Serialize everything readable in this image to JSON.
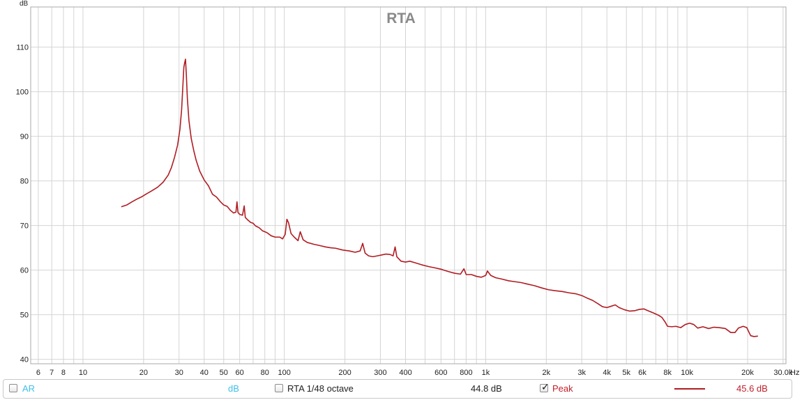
{
  "chart_data": {
    "type": "line",
    "title": "RTA",
    "ylabel": "dB",
    "xunit": "Hz",
    "xscale": "log",
    "xlim": [
      5.5,
      31000
    ],
    "ylim": [
      39,
      119
    ],
    "grid": true,
    "x_ticks": [
      {
        "v": 6,
        "label": "6"
      },
      {
        "v": 7,
        "label": "7"
      },
      {
        "v": 8,
        "label": "8"
      },
      {
        "v": 10,
        "label": "10"
      },
      {
        "v": 20,
        "label": "20"
      },
      {
        "v": 30,
        "label": "30"
      },
      {
        "v": 40,
        "label": "40"
      },
      {
        "v": 50,
        "label": "50"
      },
      {
        "v": 60,
        "label": "60"
      },
      {
        "v": 80,
        "label": "80"
      },
      {
        "v": 100,
        "label": "100"
      },
      {
        "v": 200,
        "label": "200"
      },
      {
        "v": 300,
        "label": "300"
      },
      {
        "v": 400,
        "label": "400"
      },
      {
        "v": 600,
        "label": "600"
      },
      {
        "v": 800,
        "label": "800"
      },
      {
        "v": 1000,
        "label": "1k"
      },
      {
        "v": 2000,
        "label": "2k"
      },
      {
        "v": 3000,
        "label": "3k"
      },
      {
        "v": 4000,
        "label": "4k"
      },
      {
        "v": 5000,
        "label": "5k"
      },
      {
        "v": 6000,
        "label": "6k"
      },
      {
        "v": 8000,
        "label": "8k"
      },
      {
        "v": 10000,
        "label": "10k"
      },
      {
        "v": 20000,
        "label": "20k"
      },
      {
        "v": 30000,
        "label": "30.0k"
      }
    ],
    "x_minor_grid": [
      6,
      7,
      8,
      9,
      10,
      20,
      30,
      40,
      50,
      60,
      70,
      80,
      90,
      100,
      200,
      300,
      400,
      500,
      600,
      700,
      800,
      900,
      1000,
      2000,
      3000,
      4000,
      5000,
      6000,
      7000,
      8000,
      9000,
      10000,
      20000,
      30000
    ],
    "y_ticks": [
      40,
      50,
      60,
      70,
      80,
      90,
      100,
      110
    ],
    "series": [
      {
        "name": "Peak",
        "color": "#b01c22",
        "points": [
          [
            15.5,
            74.2
          ],
          [
            16.5,
            74.6
          ],
          [
            17.5,
            75.3
          ],
          [
            18.5,
            75.9
          ],
          [
            19.5,
            76.4
          ],
          [
            20.5,
            77.0
          ],
          [
            22,
            77.8
          ],
          [
            23.5,
            78.6
          ],
          [
            25,
            79.7
          ],
          [
            26.5,
            81.3
          ],
          [
            27.5,
            83.0
          ],
          [
            28.5,
            85.3
          ],
          [
            29.5,
            88.0
          ],
          [
            30.3,
            91.5
          ],
          [
            30.9,
            96.0
          ],
          [
            31.4,
            102.0
          ],
          [
            31.7,
            105.5
          ],
          [
            32.0,
            106.5
          ],
          [
            32.3,
            107.3
          ],
          [
            32.6,
            104.0
          ],
          [
            33.0,
            98.5
          ],
          [
            33.6,
            93.5
          ],
          [
            34.5,
            89.5
          ],
          [
            35.5,
            86.8
          ],
          [
            36.5,
            84.6
          ],
          [
            38,
            82.2
          ],
          [
            40,
            80.2
          ],
          [
            42,
            78.9
          ],
          [
            44,
            77.0
          ],
          [
            46,
            76.4
          ],
          [
            48,
            75.4
          ],
          [
            50,
            74.6
          ],
          [
            52,
            74.3
          ],
          [
            54,
            73.4
          ],
          [
            56,
            72.8
          ],
          [
            57.5,
            73.0
          ],
          [
            58.2,
            75.3
          ],
          [
            58.9,
            72.9
          ],
          [
            60,
            72.5
          ],
          [
            62,
            72.3
          ],
          [
            63.2,
            74.4
          ],
          [
            64,
            71.8
          ],
          [
            66,
            71.2
          ],
          [
            68,
            70.7
          ],
          [
            70,
            70.5
          ],
          [
            72,
            69.9
          ],
          [
            75,
            69.5
          ],
          [
            78,
            68.8
          ],
          [
            82,
            68.4
          ],
          [
            86,
            67.7
          ],
          [
            90,
            67.4
          ],
          [
            95,
            67.4
          ],
          [
            98,
            67.0
          ],
          [
            101,
            68.0
          ],
          [
            103,
            71.4
          ],
          [
            105,
            70.6
          ],
          [
            108,
            68.2
          ],
          [
            112,
            67.4
          ],
          [
            117,
            66.6
          ],
          [
            120,
            68.6
          ],
          [
            124,
            66.8
          ],
          [
            130,
            66.2
          ],
          [
            140,
            65.8
          ],
          [
            150,
            65.5
          ],
          [
            160,
            65.2
          ],
          [
            170,
            65.0
          ],
          [
            180,
            64.9
          ],
          [
            195,
            64.5
          ],
          [
            210,
            64.3
          ],
          [
            225,
            64.0
          ],
          [
            238,
            64.3
          ],
          [
            245,
            66.0
          ],
          [
            252,
            63.8
          ],
          [
            262,
            63.2
          ],
          [
            275,
            63.0
          ],
          [
            290,
            63.2
          ],
          [
            305,
            63.4
          ],
          [
            320,
            63.6
          ],
          [
            335,
            63.5
          ],
          [
            347,
            63.2
          ],
          [
            355,
            65.2
          ],
          [
            362,
            63.0
          ],
          [
            380,
            62.0
          ],
          [
            400,
            61.8
          ],
          [
            420,
            62.0
          ],
          [
            450,
            61.6
          ],
          [
            480,
            61.2
          ],
          [
            520,
            60.8
          ],
          [
            560,
            60.5
          ],
          [
            600,
            60.2
          ],
          [
            650,
            59.7
          ],
          [
            700,
            59.3
          ],
          [
            750,
            59.1
          ],
          [
            780,
            60.3
          ],
          [
            800,
            59.0
          ],
          [
            850,
            59.0
          ],
          [
            900,
            58.6
          ],
          [
            950,
            58.4
          ],
          [
            1000,
            58.8
          ],
          [
            1020,
            59.8
          ],
          [
            1060,
            58.8
          ],
          [
            1120,
            58.3
          ],
          [
            1200,
            58.0
          ],
          [
            1300,
            57.6
          ],
          [
            1400,
            57.4
          ],
          [
            1500,
            57.2
          ],
          [
            1600,
            56.9
          ],
          [
            1750,
            56.5
          ],
          [
            1900,
            56.0
          ],
          [
            2050,
            55.6
          ],
          [
            2200,
            55.4
          ],
          [
            2400,
            55.2
          ],
          [
            2600,
            54.9
          ],
          [
            2800,
            54.7
          ],
          [
            3000,
            54.3
          ],
          [
            3200,
            53.7
          ],
          [
            3400,
            53.2
          ],
          [
            3600,
            52.5
          ],
          [
            3800,
            51.8
          ],
          [
            4000,
            51.6
          ],
          [
            4200,
            51.9
          ],
          [
            4400,
            52.2
          ],
          [
            4600,
            51.6
          ],
          [
            4900,
            51.1
          ],
          [
            5200,
            50.8
          ],
          [
            5500,
            50.9
          ],
          [
            5800,
            51.2
          ],
          [
            6100,
            51.3
          ],
          [
            6400,
            50.9
          ],
          [
            6800,
            50.4
          ],
          [
            7200,
            49.9
          ],
          [
            7500,
            49.4
          ],
          [
            7800,
            48.3
          ],
          [
            8000,
            47.4
          ],
          [
            8400,
            47.3
          ],
          [
            8800,
            47.4
          ],
          [
            9300,
            47.1
          ],
          [
            9800,
            47.8
          ],
          [
            10300,
            48.1
          ],
          [
            10800,
            47.8
          ],
          [
            11300,
            47.0
          ],
          [
            12000,
            47.3
          ],
          [
            12800,
            46.9
          ],
          [
            13600,
            47.2
          ],
          [
            14500,
            47.1
          ],
          [
            15500,
            46.9
          ],
          [
            16500,
            46.0
          ],
          [
            17300,
            46.0
          ],
          [
            18000,
            47.0
          ],
          [
            19000,
            47.4
          ],
          [
            19800,
            47.1
          ],
          [
            20700,
            45.3
          ],
          [
            21500,
            45.1
          ],
          [
            22500,
            45.2
          ]
        ]
      }
    ]
  },
  "legend": {
    "ar_label": "AR",
    "db_label": "dB",
    "rta_label": "RTA 1/48 octave",
    "rta_value": "44.8 dB",
    "peak_label": "Peak",
    "peak_value": "45.6 dB",
    "peak_checked_mark": "✓"
  }
}
